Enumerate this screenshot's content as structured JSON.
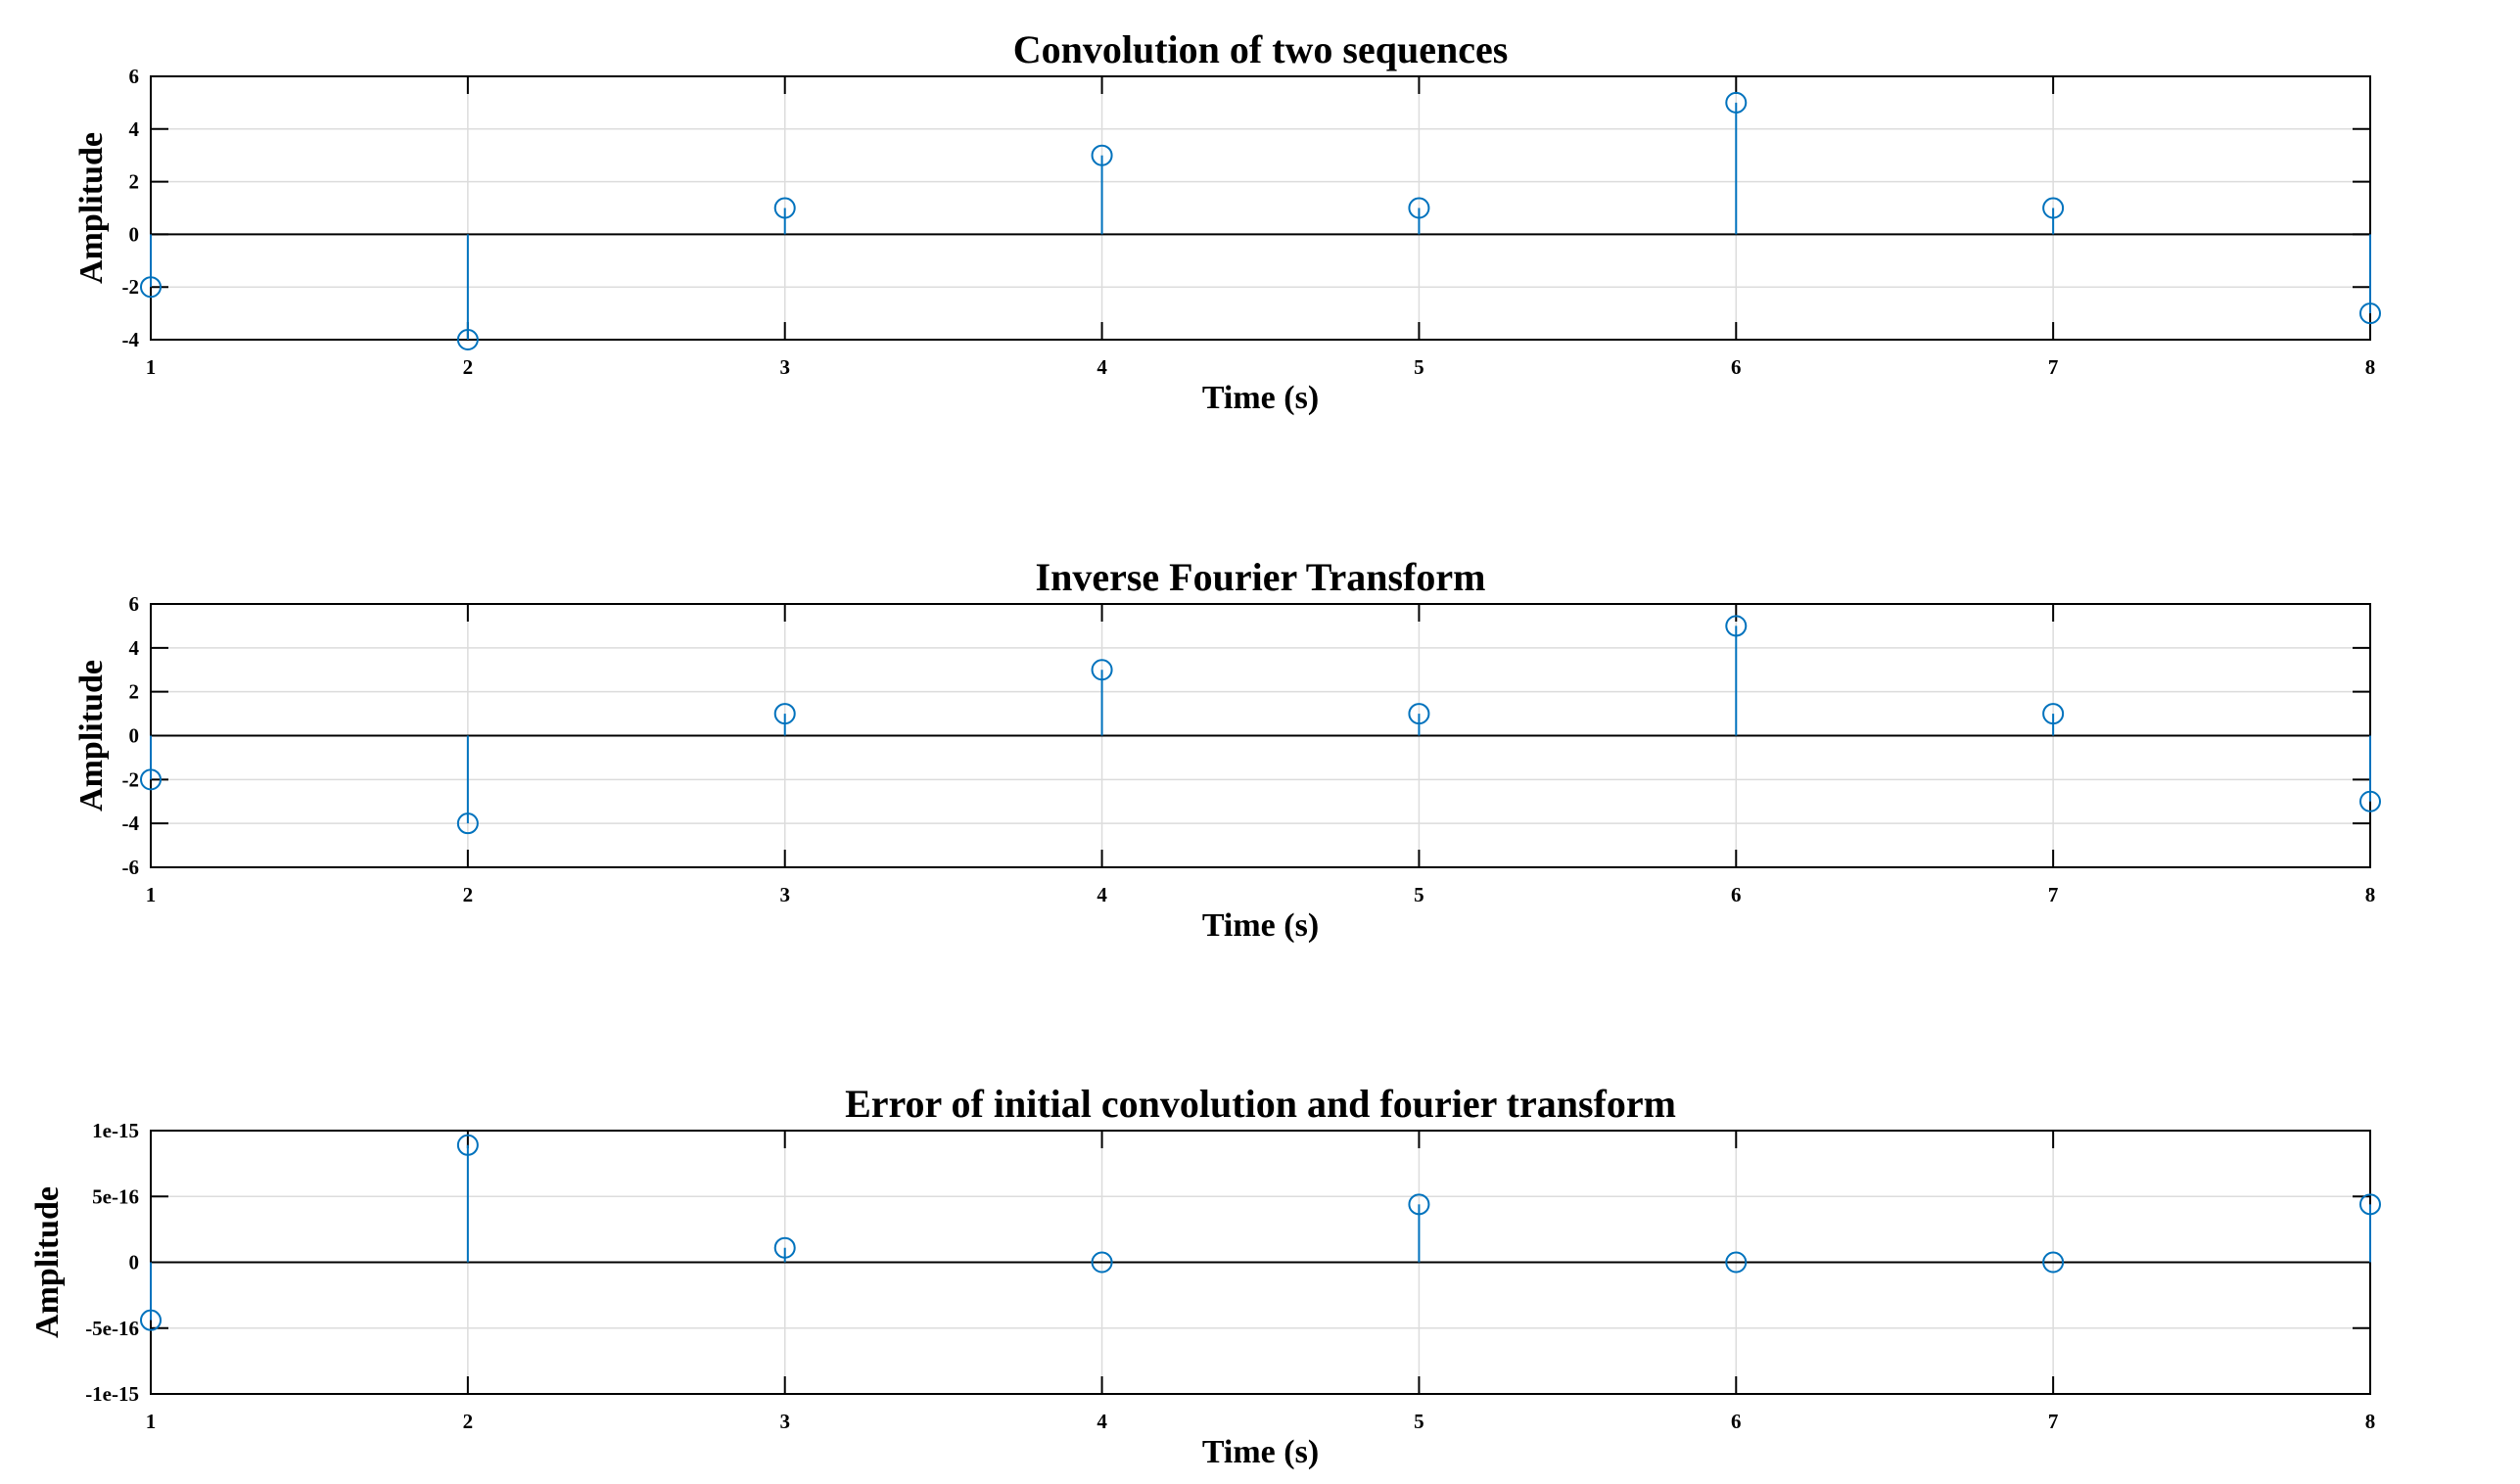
{
  "chart_data": [
    {
      "type": "stem",
      "title": "Convolution of two sequences",
      "xlabel": "Time (s)",
      "ylabel": "Amplitude",
      "xlim": [
        1,
        8
      ],
      "ylim": [
        -4,
        6
      ],
      "xticks": [
        1,
        2,
        3,
        4,
        5,
        6,
        7,
        8
      ],
      "xtick_labels": [
        "1",
        "2",
        "3",
        "4",
        "5",
        "6",
        "7",
        "8"
      ],
      "yticks": [
        -4,
        -2,
        0,
        2,
        4,
        6
      ],
      "ytick_labels": [
        "-4",
        "-2",
        "0",
        "2",
        "4",
        "6"
      ],
      "grid": true,
      "x": [
        1,
        2,
        3,
        4,
        5,
        6,
        7,
        8
      ],
      "values": [
        -2,
        -4,
        1,
        3,
        1,
        5,
        1,
        -3
      ],
      "color": "#0072BD"
    },
    {
      "type": "stem",
      "title": "Inverse Fourier Transform",
      "xlabel": "Time (s)",
      "ylabel": "Amplitude",
      "xlim": [
        1,
        8
      ],
      "ylim": [
        -6,
        6
      ],
      "xticks": [
        1,
        2,
        3,
        4,
        5,
        6,
        7,
        8
      ],
      "xtick_labels": [
        "1",
        "2",
        "3",
        "4",
        "5",
        "6",
        "7",
        "8"
      ],
      "yticks": [
        -6,
        -4,
        -2,
        0,
        2,
        4,
        6
      ],
      "ytick_labels": [
        "-6",
        "-4",
        "-2",
        "0",
        "2",
        "4",
        "6"
      ],
      "grid": true,
      "x": [
        1,
        2,
        3,
        4,
        5,
        6,
        7,
        8
      ],
      "values": [
        -2,
        -4,
        1,
        3,
        1,
        5,
        1,
        -3
      ],
      "color": "#0072BD"
    },
    {
      "type": "stem",
      "title": "Error of initial convolution and fourier transform",
      "xlabel": "Time (s)",
      "ylabel": "Amplitude",
      "xlim": [
        1,
        8
      ],
      "ylim": [
        -1e-15,
        1e-15
      ],
      "xticks": [
        1,
        2,
        3,
        4,
        5,
        6,
        7,
        8
      ],
      "xtick_labels": [
        "1",
        "2",
        "3",
        "4",
        "5",
        "6",
        "7",
        "8"
      ],
      "yticks": [
        -1e-15,
        -5e-16,
        0,
        5e-16,
        1e-15
      ],
      "ytick_labels": [
        "-1e-15",
        "-5e-16",
        "0",
        "5e-16",
        "1e-15"
      ],
      "grid": true,
      "x": [
        1,
        2,
        3,
        4,
        5,
        6,
        7,
        8
      ],
      "values": [
        -4.4e-16,
        8.9e-16,
        1.1e-16,
        0,
        4.4e-16,
        0,
        0,
        4.4e-16
      ],
      "color": "#0072BD"
    }
  ]
}
